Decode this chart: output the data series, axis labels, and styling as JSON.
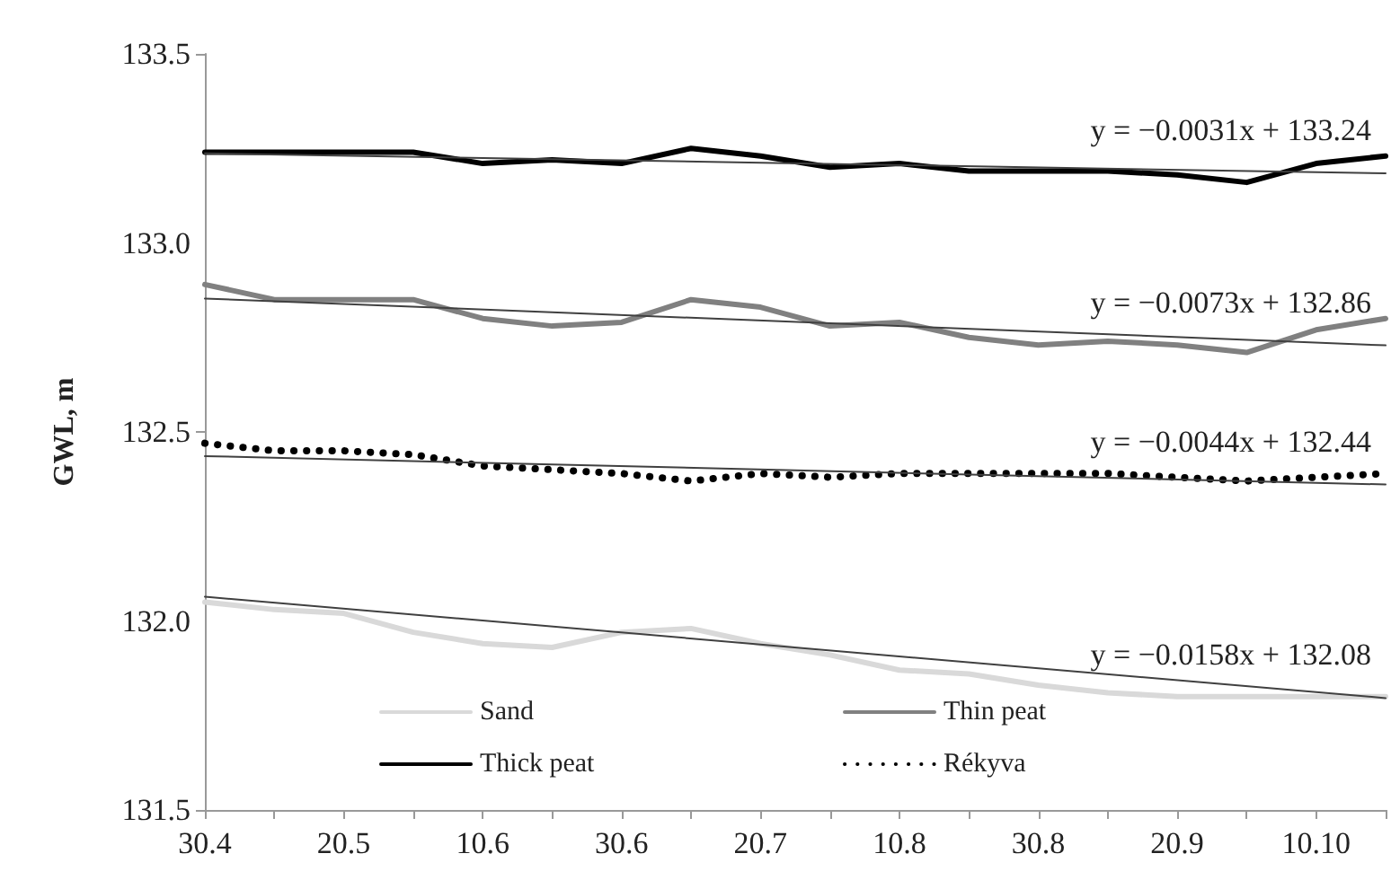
{
  "chart_data": {
    "type": "line",
    "ylabel": "GWL, m",
    "categories": [
      "30.4",
      null,
      "20.5",
      null,
      "10.6",
      null,
      "30.6",
      null,
      "20.7",
      null,
      "10.8",
      null,
      "30.8",
      null,
      "20.9",
      null,
      "10.10",
      null
    ],
    "ylim": [
      131.5,
      133.5
    ],
    "yticks": [
      131.5,
      {
        "value": 132,
        "label": "132.0"
      },
      132.5,
      {
        "value": 133,
        "label": "133.0"
      },
      133.5
    ],
    "grid": false,
    "legend": "bottom left",
    "marker": "none",
    "series": [
      {
        "name": "Sand",
        "color": "#d9d9d9",
        "line_style": "solid",
        "values": [
          132.05,
          132.03,
          132.02,
          131.97,
          131.94,
          131.93,
          131.97,
          131.98,
          131.94,
          131.91,
          131.87,
          131.86,
          131.83,
          131.81,
          131.8,
          131.8,
          131.8,
          131.8
        ]
      },
      {
        "name": "Thin peat",
        "color": "#808080",
        "line_style": "solid",
        "values": [
          132.89,
          132.85,
          132.85,
          132.85,
          132.8,
          132.78,
          132.79,
          132.85,
          132.83,
          132.78,
          132.79,
          132.75,
          132.73,
          132.74,
          132.73,
          132.71,
          132.77,
          132.8
        ]
      },
      {
        "name": "Thick peat",
        "color": "#000000",
        "line_style": "solid",
        "values": [
          133.24,
          133.24,
          133.24,
          133.24,
          133.21,
          133.22,
          133.21,
          133.25,
          133.23,
          133.2,
          133.21,
          133.19,
          133.19,
          133.19,
          133.18,
          133.16,
          133.21,
          133.23
        ]
      },
      {
        "name": "Rékyva",
        "color": "#000000",
        "line_style": "dotted",
        "values": [
          132.47,
          132.45,
          132.45,
          132.44,
          132.41,
          132.4,
          132.39,
          132.37,
          132.39,
          132.38,
          132.39,
          132.39,
          132.39,
          132.39,
          132.38,
          132.37,
          132.38,
          132.39
        ]
      },
      {
        "type": "line",
        "color": "#404040",
        "line_style": "solid",
        "values": [
          133.237,
          null,
          null,
          null,
          null,
          null,
          null,
          null,
          null,
          null,
          null,
          null,
          null,
          null,
          null,
          null,
          null,
          133.184
        ]
      },
      {
        "type": "line",
        "color": "#404040",
        "line_style": "solid",
        "values": [
          132.853,
          null,
          null,
          null,
          null,
          null,
          null,
          null,
          null,
          null,
          null,
          null,
          null,
          null,
          null,
          null,
          null,
          132.729
        ]
      },
      {
        "type": "line",
        "color": "#404040",
        "line_style": "solid",
        "values": [
          132.436,
          null,
          null,
          null,
          null,
          null,
          null,
          null,
          null,
          null,
          null,
          null,
          null,
          null,
          null,
          null,
          null,
          132.361
        ]
      },
      {
        "type": "line",
        "color": "#404040",
        "line_style": "solid",
        "values": [
          132.064,
          null,
          null,
          null,
          null,
          null,
          null,
          null,
          null,
          null,
          null,
          null,
          null,
          null,
          null,
          null,
          null,
          131.796
        ]
      }
    ],
    "annotations": [
      "y = −0.0031x + 133.24",
      "y = −0.0073x + 132.86",
      "y = −0.0044x + 132.44",
      "y = −0.0158x + 132.08"
    ]
  }
}
